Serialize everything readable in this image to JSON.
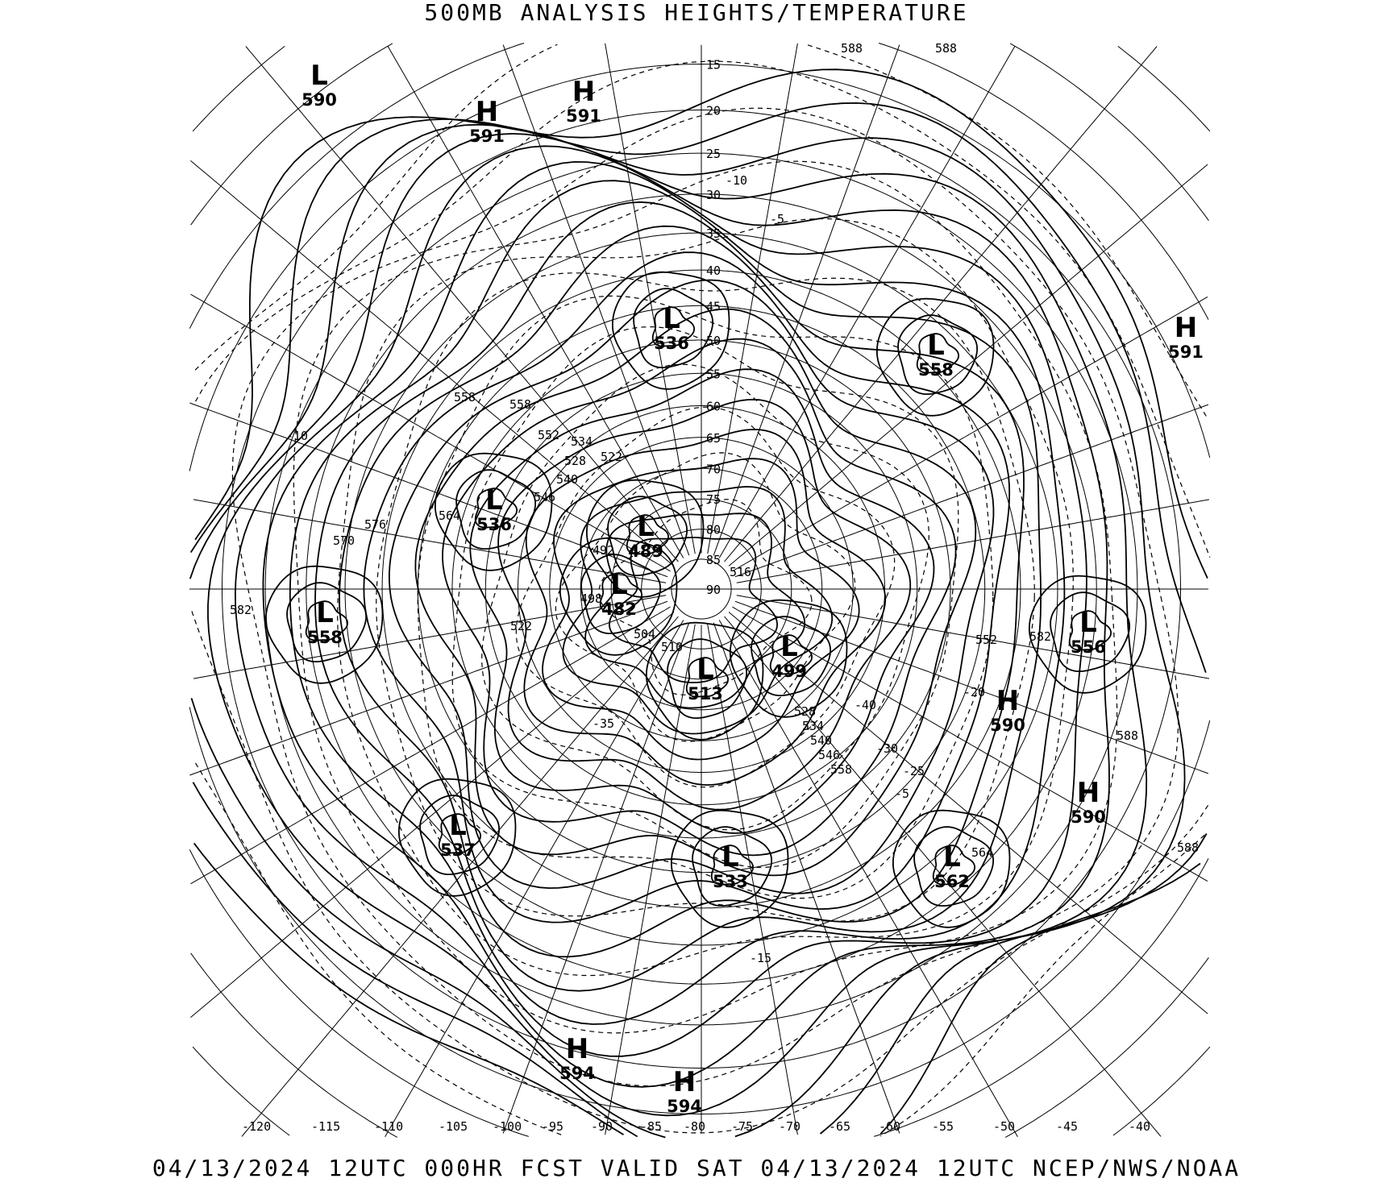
{
  "title": "500MB ANALYSIS  HEIGHTS/TEMPERATURE",
  "footer": "04/13/2024 12UTC 000HR FCST VALID SAT 04/13/2024 12UTC  NCEP/NWS/NOAA",
  "projection": "polar stereographic (north pole)",
  "longitude_labels": [
    "-120",
    "-115",
    "-110",
    "-105",
    "-100",
    "-95",
    "-90",
    "-85",
    "-80",
    "-75",
    "-70",
    "-65",
    "-60",
    "-55",
    "-50",
    "-45",
    "-40"
  ],
  "latitude_labels": [
    "15",
    "20",
    "25",
    "30",
    "35",
    "40",
    "45",
    "50",
    "55",
    "60",
    "65",
    "70",
    "75",
    "80",
    "85",
    "90"
  ],
  "pressure_centers": [
    {
      "type": "L",
      "value": "590"
    },
    {
      "type": "H",
      "value": "591"
    },
    {
      "type": "H",
      "value": "591"
    },
    {
      "type": "L",
      "value": "536"
    },
    {
      "type": "L",
      "value": "558"
    },
    {
      "type": "H",
      "value": "591"
    },
    {
      "type": "L",
      "value": "536"
    },
    {
      "type": "L",
      "value": "489"
    },
    {
      "type": "L",
      "value": "482"
    },
    {
      "type": "L",
      "value": "558"
    },
    {
      "type": "L",
      "value": "513"
    },
    {
      "type": "L",
      "value": "499"
    },
    {
      "type": "L",
      "value": "556"
    },
    {
      "type": "H",
      "value": "590"
    },
    {
      "type": "H",
      "value": "590"
    },
    {
      "type": "L",
      "value": "537"
    },
    {
      "type": "L",
      "value": "533"
    },
    {
      "type": "L",
      "value": "562"
    },
    {
      "type": "H",
      "value": "594"
    },
    {
      "type": "H",
      "value": "594"
    }
  ],
  "contour_labels": [
    "588",
    "588",
    "558",
    "558",
    "552",
    "534",
    "528",
    "522",
    "540",
    "546",
    "564",
    "576",
    "570",
    "582",
    "504",
    "510",
    "516",
    "492",
    "498",
    "522",
    "552",
    "528",
    "534",
    "540",
    "546",
    "558",
    "582",
    "588",
    "564",
    "588",
    "-10",
    "-5",
    "-10",
    "-5",
    "-30",
    "-25",
    "-20",
    "-15",
    "-35",
    "-40"
  ],
  "line_color": "#000000",
  "background": "#ffffff"
}
